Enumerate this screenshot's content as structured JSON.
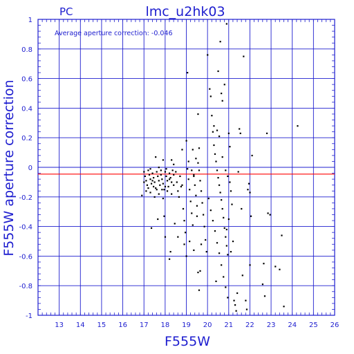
{
  "chart_data": {
    "type": "scatter",
    "panel_label": "PC",
    "title": "lmc_u2hk03",
    "xlabel": "F555W",
    "ylabel": "F555W aperture correction",
    "annotation": "Average aperture correction: -0.046",
    "xlim": [
      12,
      26
    ],
    "ylim": [
      -1,
      1
    ],
    "x_ticks": [
      13,
      14,
      15,
      16,
      17,
      18,
      19,
      20,
      21,
      22,
      23,
      24,
      25,
      26
    ],
    "y_ticks": [
      -1,
      -0.8,
      -0.6,
      -0.4,
      -0.2,
      0,
      0.2,
      0.4,
      0.6,
      0.8,
      1
    ],
    "y_tick_labels": [
      "-1",
      "-0.8",
      "-0.6",
      "-0.4",
      "-0.2",
      "0",
      "0.2",
      "0.4",
      "0.6",
      "0.8",
      "1"
    ],
    "grid": true,
    "reference_line": {
      "y": -0.046,
      "color": "#ff0000"
    },
    "colors": {
      "axis": "#1d1dcf",
      "grid": "#1d1dcf",
      "points": "#000000",
      "reference": "#ff0000"
    },
    "series": [
      {
        "points": [
          [
            16.9,
            -0.19
          ],
          [
            17.0,
            -0.03
          ],
          [
            17.05,
            -0.06
          ],
          [
            17.1,
            -0.09
          ],
          [
            17.15,
            -0.12
          ],
          [
            17.2,
            -0.02
          ],
          [
            17.25,
            -0.05
          ],
          [
            17.3,
            -0.08
          ],
          [
            17.35,
            -0.11
          ],
          [
            17.4,
            -0.04
          ],
          [
            17.45,
            -0.07
          ],
          [
            17.5,
            -0.1
          ],
          [
            17.55,
            -0.14
          ],
          [
            17.6,
            -0.03
          ],
          [
            17.65,
            -0.06
          ],
          [
            17.7,
            -0.09
          ],
          [
            17.75,
            -0.12
          ],
          [
            17.8,
            -0.05
          ],
          [
            17.85,
            -0.08
          ],
          [
            17.9,
            -0.11
          ],
          [
            17.95,
            -0.15
          ],
          [
            18.0,
            -0.03
          ],
          [
            18.05,
            -0.06
          ],
          [
            18.1,
            -0.09
          ],
          [
            18.15,
            -0.13
          ],
          [
            18.2,
            -0.04
          ],
          [
            18.25,
            -0.07
          ],
          [
            18.3,
            -0.1
          ],
          [
            18.35,
            -0.02
          ],
          [
            18.4,
            -0.05
          ],
          [
            17.1,
            -0.16
          ],
          [
            17.3,
            -0.17
          ],
          [
            17.5,
            -0.2
          ],
          [
            17.7,
            -0.18
          ],
          [
            17.9,
            -0.21
          ],
          [
            18.1,
            -0.16
          ],
          [
            18.3,
            -0.18
          ],
          [
            17.2,
            -0.14
          ],
          [
            17.6,
            -0.15
          ],
          [
            18.0,
            -0.13
          ],
          [
            17.0,
            -0.1
          ],
          [
            17.4,
            -0.09
          ],
          [
            17.8,
            -0.02
          ],
          [
            18.2,
            -0.08
          ],
          [
            18.4,
            -0.12
          ],
          [
            17.3,
            -0.01
          ],
          [
            17.7,
            0.0
          ],
          [
            18.05,
            -0.01
          ],
          [
            17.45,
            -0.13
          ],
          [
            17.85,
            -0.15
          ],
          [
            17.35,
            -0.41
          ],
          [
            17.65,
            -0.35
          ],
          [
            17.95,
            -0.33
          ],
          [
            18.0,
            -0.47
          ],
          [
            18.45,
            -0.38
          ],
          [
            18.2,
            -0.62
          ],
          [
            18.25,
            -0.57
          ],
          [
            17.55,
            0.07
          ],
          [
            17.9,
            0.05
          ],
          [
            18.3,
            0.05
          ],
          [
            18.5,
            -0.03
          ],
          [
            18.55,
            -0.1
          ],
          [
            18.6,
            -0.16
          ],
          [
            18.65,
            -0.2
          ],
          [
            18.7,
            -0.06
          ],
          [
            18.75,
            -0.13
          ],
          [
            18.8,
            0.12
          ],
          [
            18.85,
            -0.28
          ],
          [
            18.9,
            -0.36
          ],
          [
            18.95,
            -0.44
          ],
          [
            19.0,
            0.18
          ],
          [
            19.05,
            -0.01
          ],
          [
            19.1,
            -0.08
          ],
          [
            19.15,
            -0.15
          ],
          [
            19.2,
            -0.23
          ],
          [
            19.25,
            -0.31
          ],
          [
            19.3,
            -0.39
          ],
          [
            19.35,
            -0.05
          ],
          [
            19.4,
            -0.12
          ],
          [
            19.45,
            -0.19
          ],
          [
            19.5,
            -0.26
          ],
          [
            19.55,
            0.03
          ],
          [
            19.6,
            -0.02
          ],
          [
            19.65,
            -0.09
          ],
          [
            19.7,
            -0.16
          ],
          [
            19.75,
            -0.24
          ],
          [
            19.8,
            -0.32
          ],
          [
            19.85,
            -0.4
          ],
          [
            19.9,
            -0.49
          ],
          [
            19.95,
            -0.57
          ],
          [
            18.6,
            -0.47
          ],
          [
            18.9,
            -0.52
          ],
          [
            19.0,
            -0.6
          ],
          [
            19.15,
            -0.5
          ],
          [
            19.35,
            -0.56
          ],
          [
            19.5,
            -0.33
          ],
          [
            19.7,
            -0.52
          ],
          [
            19.55,
            -0.71
          ],
          [
            19.6,
            -0.83
          ],
          [
            19.65,
            -0.7
          ],
          [
            19.05,
            0.64
          ],
          [
            19.55,
            0.36
          ],
          [
            19.6,
            0.13
          ],
          [
            19.45,
            0.06
          ],
          [
            19.3,
            0.12
          ],
          [
            19.1,
            0.04
          ],
          [
            19.35,
            -0.06
          ],
          [
            19.25,
            -0.02
          ],
          [
            18.8,
            -0.12
          ],
          [
            18.4,
            0.02
          ],
          [
            20.0,
            0.76
          ],
          [
            20.1,
            0.53
          ],
          [
            20.15,
            0.48
          ],
          [
            20.2,
            0.35
          ],
          [
            20.25,
            0.24
          ],
          [
            20.3,
            0.15
          ],
          [
            20.35,
            0.09
          ],
          [
            20.4,
            0.04
          ],
          [
            20.45,
            -0.02
          ],
          [
            20.5,
            -0.07
          ],
          [
            20.55,
            -0.12
          ],
          [
            20.6,
            -0.17
          ],
          [
            20.65,
            -0.22
          ],
          [
            20.7,
            -0.28
          ],
          [
            20.75,
            -0.34
          ],
          [
            20.8,
            -0.41
          ],
          [
            20.85,
            -0.47
          ],
          [
            20.9,
            -0.53
          ],
          [
            20.95,
            -0.59
          ],
          [
            20.05,
            -0.21
          ],
          [
            20.15,
            -0.29
          ],
          [
            20.25,
            -0.36
          ],
          [
            20.35,
            -0.43
          ],
          [
            20.45,
            -0.51
          ],
          [
            20.55,
            -0.58
          ],
          [
            20.65,
            -0.66
          ],
          [
            20.75,
            -0.74
          ],
          [
            20.85,
            -0.81
          ],
          [
            20.95,
            -0.88
          ],
          [
            20.4,
            -0.77
          ],
          [
            20.5,
            0.65
          ],
          [
            20.6,
            0.85
          ],
          [
            20.65,
            0.5
          ],
          [
            20.7,
            0.45
          ],
          [
            20.8,
            0.56
          ],
          [
            20.9,
            0.97
          ],
          [
            21.0,
            0.23
          ],
          [
            21.05,
            0.14
          ],
          [
            20.3,
            0.28
          ],
          [
            20.45,
            0.25
          ],
          [
            20.55,
            0.21
          ],
          [
            20.7,
            0.07
          ],
          [
            20.85,
            -0.02
          ],
          [
            20.95,
            -0.06
          ],
          [
            21.05,
            -0.1
          ],
          [
            21.1,
            -0.16
          ],
          [
            21.15,
            -0.25
          ],
          [
            21.2,
            -0.5
          ],
          [
            21.25,
            -0.9
          ],
          [
            21.3,
            -0.93
          ],
          [
            21.0,
            -0.35
          ],
          [
            20.9,
            -0.42
          ],
          [
            21.1,
            -0.57
          ],
          [
            21.35,
            -0.97
          ],
          [
            21.45,
            -0.03
          ],
          [
            21.5,
            0.26
          ],
          [
            21.55,
            0.23
          ],
          [
            21.6,
            -0.28
          ],
          [
            21.65,
            -0.73
          ],
          [
            21.7,
            0.75
          ],
          [
            21.8,
            -0.9
          ],
          [
            21.85,
            -0.96
          ],
          [
            21.9,
            -0.15
          ],
          [
            21.95,
            -0.11
          ],
          [
            22.0,
            -0.66
          ],
          [
            22.05,
            -0.33
          ],
          [
            22.1,
            0.08
          ],
          [
            22.0,
            -0.17
          ],
          [
            22.8,
            0.23
          ],
          [
            22.85,
            -0.31
          ],
          [
            22.95,
            -0.32
          ],
          [
            22.6,
            -0.79
          ],
          [
            22.7,
            -0.87
          ],
          [
            22.65,
            -0.65
          ],
          [
            23.2,
            -0.67
          ],
          [
            23.4,
            -0.69
          ],
          [
            23.5,
            -0.46
          ],
          [
            23.6,
            -0.94
          ],
          [
            24.25,
            0.28
          ],
          [
            21.4,
            -0.85
          ]
        ]
      }
    ]
  }
}
